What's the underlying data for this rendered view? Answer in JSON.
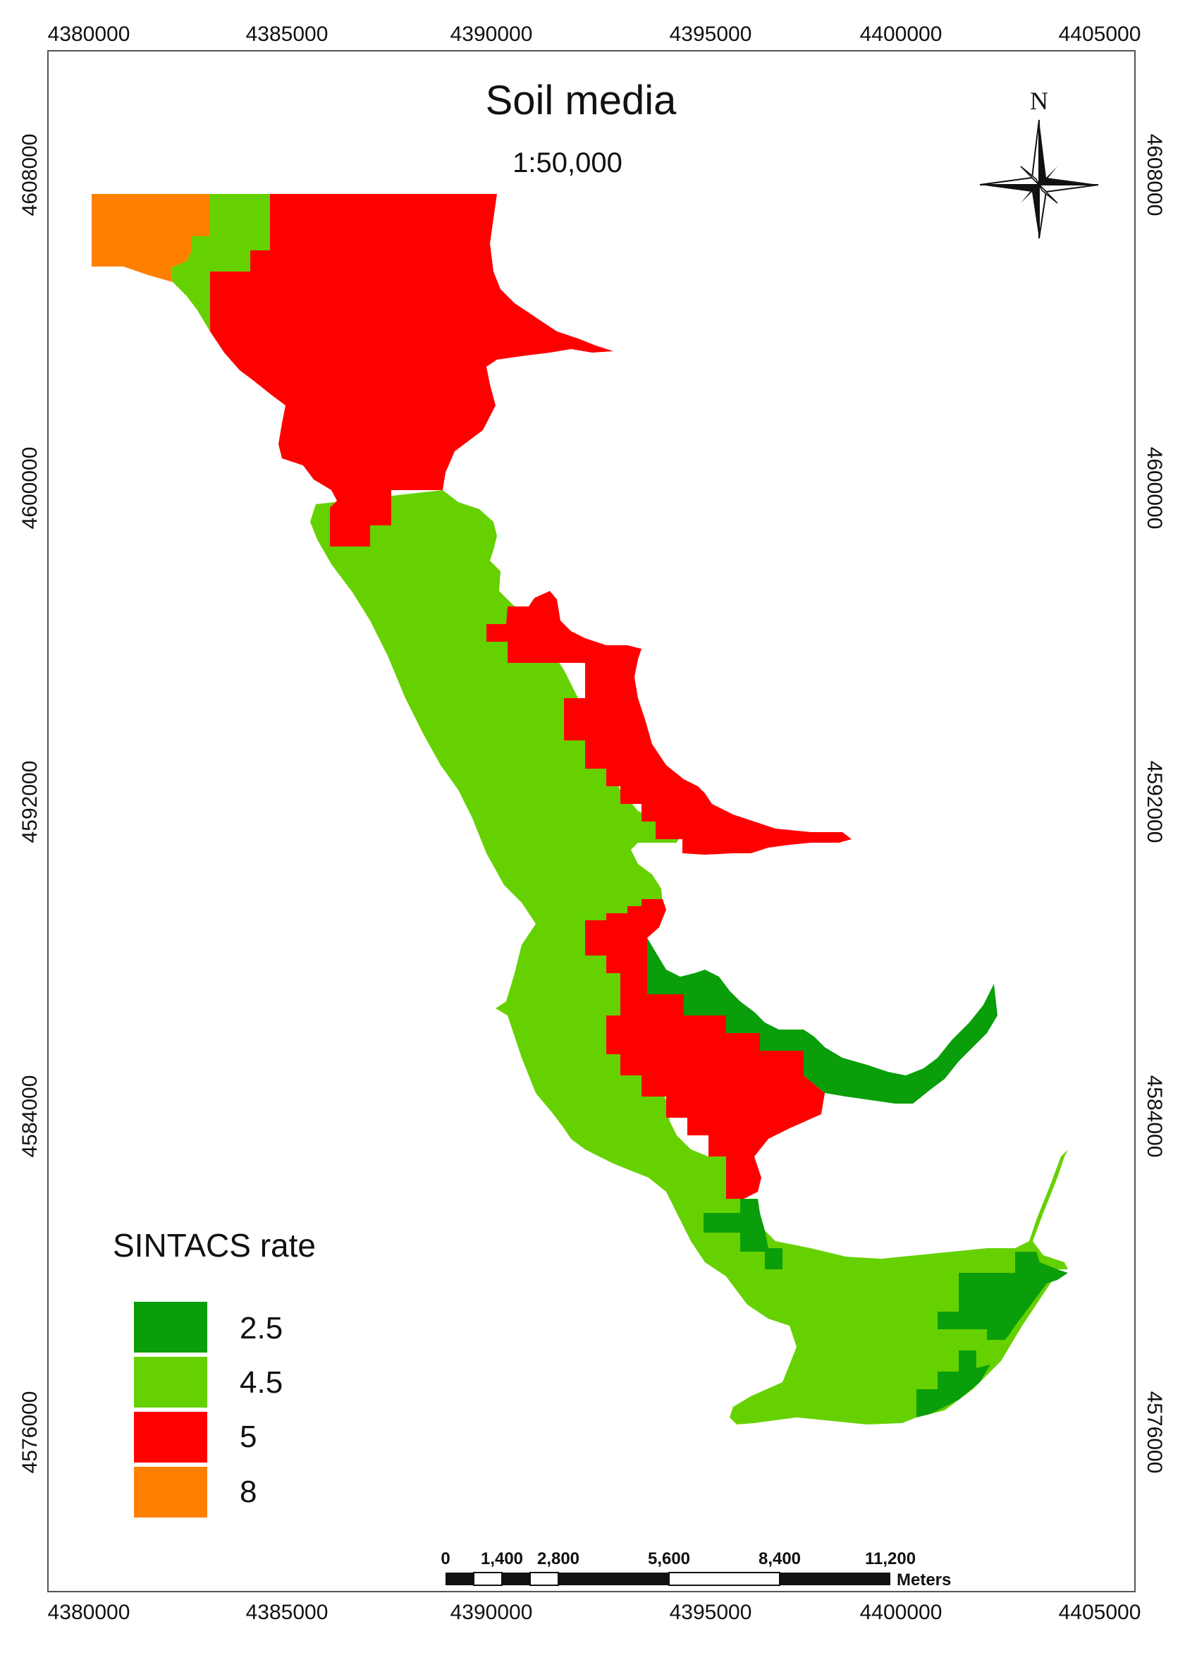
{
  "map": {
    "title": "Soil media",
    "scale": "1:50,000",
    "north_label": "N",
    "x_ticks": [
      "4380000",
      "4385000",
      "4390000",
      "4395000",
      "4400000",
      "4405000"
    ],
    "y_ticks": [
      "4608000",
      "4600000",
      "4592000",
      "4584000",
      "4576000"
    ]
  },
  "legend": {
    "title": "SINTACS rate",
    "items": [
      {
        "label": "2.5",
        "color": "#0a9e0a"
      },
      {
        "label": "4.5",
        "color": "#66d100"
      },
      {
        "label": "5",
        "color": "#ff0000"
      },
      {
        "label": "8",
        "color": "#ff8000"
      }
    ]
  },
  "scale_bar": {
    "labels": [
      "0",
      "1,400",
      "2,800",
      "5,600",
      "8,400",
      "11,200"
    ],
    "unit": "Meters"
  }
}
